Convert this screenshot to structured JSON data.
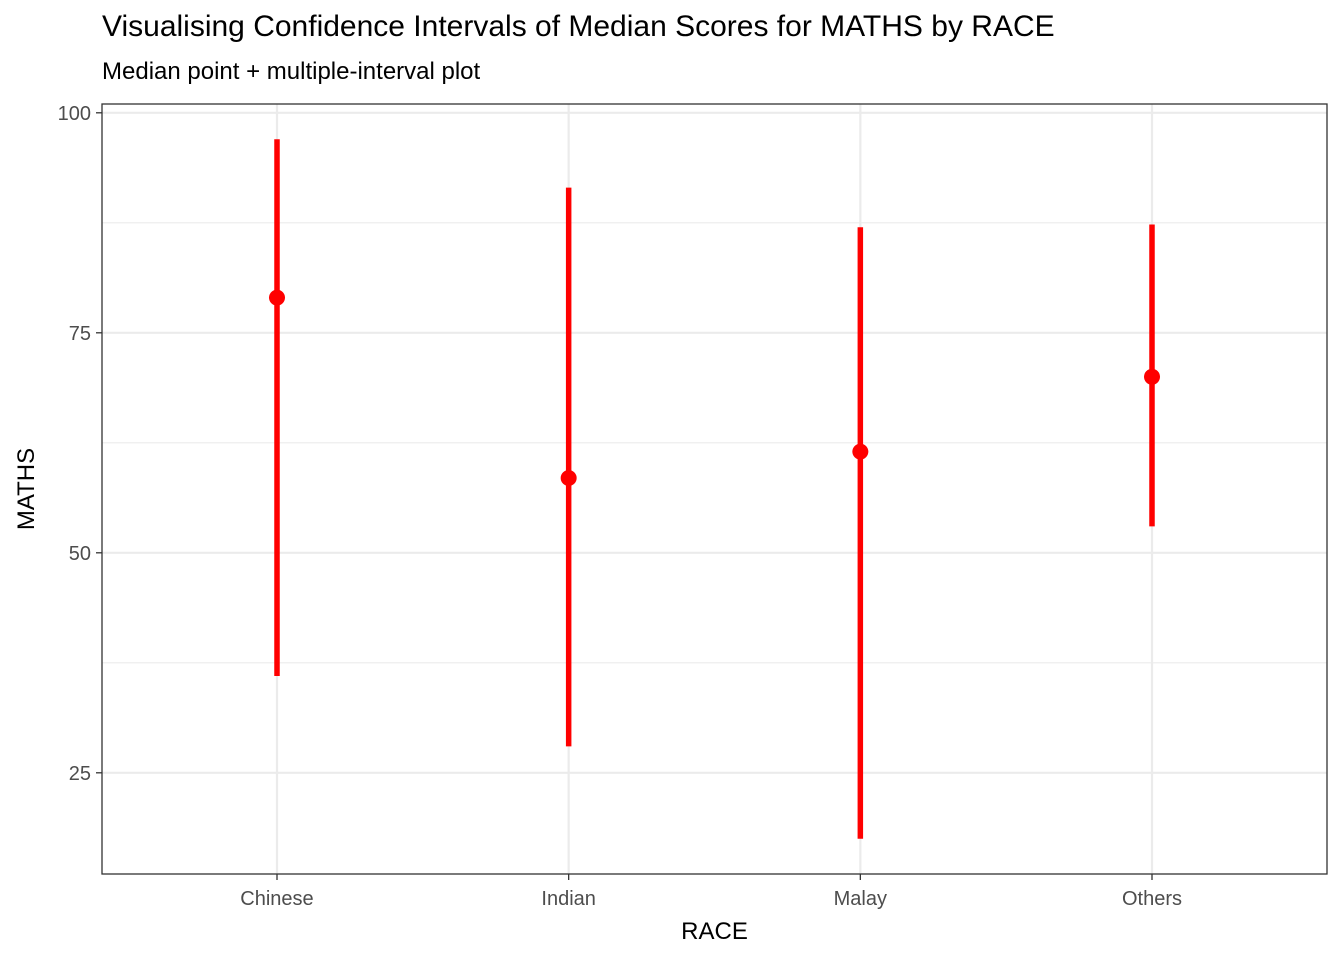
{
  "chart_data": {
    "type": "errorbar",
    "title": "Visualising Confidence Intervals of Median Scores for MATHS by RACE",
    "subtitle": "Median point + multiple-interval plot",
    "xlabel": "RACE",
    "ylabel": "MATHS",
    "categories": [
      "Chinese",
      "Indian",
      "Malay",
      "Others"
    ],
    "median": [
      79,
      58.5,
      61.5,
      70
    ],
    "lower": [
      36,
      28,
      17.5,
      53
    ],
    "upper": [
      97,
      91.5,
      87,
      87.3
    ],
    "ylim": [
      13.5,
      101
    ],
    "yticks": [
      25,
      50,
      75,
      100
    ],
    "grid": true,
    "colors": {
      "interval": "#ff0000",
      "point": "#ff0000",
      "grid": "#ebebeb",
      "border": "#333333"
    }
  }
}
